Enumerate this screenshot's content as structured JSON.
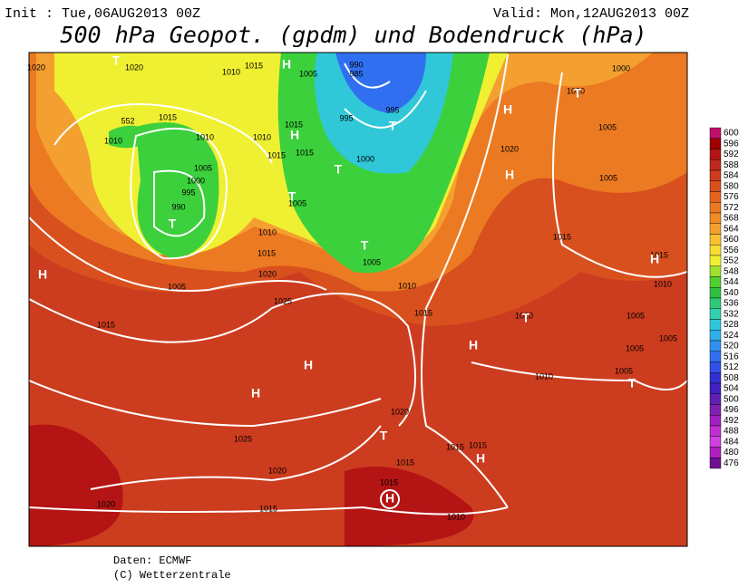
{
  "header": {
    "init": "Init : Tue,06AUG2013 00Z",
    "valid": "Valid: Mon,12AUG2013 00Z",
    "title": "500 hPa Geopot. (gpdm) und Bodendruck (hPa)"
  },
  "legend": {
    "levels": [
      600,
      596,
      592,
      588,
      584,
      580,
      576,
      572,
      568,
      564,
      560,
      556,
      552,
      548,
      544,
      540,
      536,
      532,
      528,
      524,
      520,
      516,
      512,
      508,
      504,
      500,
      496,
      492,
      488,
      484,
      480,
      476
    ],
    "colors": [
      "#c0106c",
      "#a00000",
      "#b41414",
      "#c0281e",
      "#cc3c1e",
      "#d8501e",
      "#e4641e",
      "#ec7a22",
      "#f08c28",
      "#f4a030",
      "#f8c032",
      "#f8dc32",
      "#f0f032",
      "#a0e030",
      "#50d030",
      "#30c040",
      "#30c878",
      "#30d0b0",
      "#30c8d8",
      "#30b0e8",
      "#3090f0",
      "#3070f0",
      "#3050e8",
      "#3030d0",
      "#4020c0",
      "#6020b0",
      "#8020b0",
      "#a020c0",
      "#c030d0",
      "#d040e0",
      "#b020c0",
      "#701090"
    ]
  },
  "map_labels": [
    "1020",
    "T",
    "1020",
    "1010",
    "1015",
    "H",
    "1005",
    "990",
    "985",
    "1000",
    "1020",
    "T",
    "552",
    "1015",
    "1010",
    "1010",
    "1010",
    "H",
    "1015",
    "995",
    "995",
    "T",
    "H",
    "1005",
    "1020",
    "H",
    "1005",
    "1015",
    "1015",
    "1000",
    "T",
    "1005",
    "1000",
    "995",
    "990",
    "T",
    "1005",
    "T",
    "1010",
    "1015",
    "T",
    "1005",
    "1010",
    "1015",
    "H",
    "1020",
    "1005",
    "1015",
    "H",
    "1010",
    "1025",
    "1015",
    "1015",
    "1010",
    "T",
    "1005",
    "H",
    "1005",
    "1005",
    "H",
    "1010",
    "1005",
    "T",
    "H",
    "1020",
    "T",
    "1025",
    "1015",
    "1015",
    "H",
    "1015",
    "1020",
    "1015",
    "H",
    "1020",
    "1015",
    "1010"
  ],
  "footer": {
    "source": "Daten: ECMWF",
    "copyright": "(C) Wetterzentrale"
  }
}
